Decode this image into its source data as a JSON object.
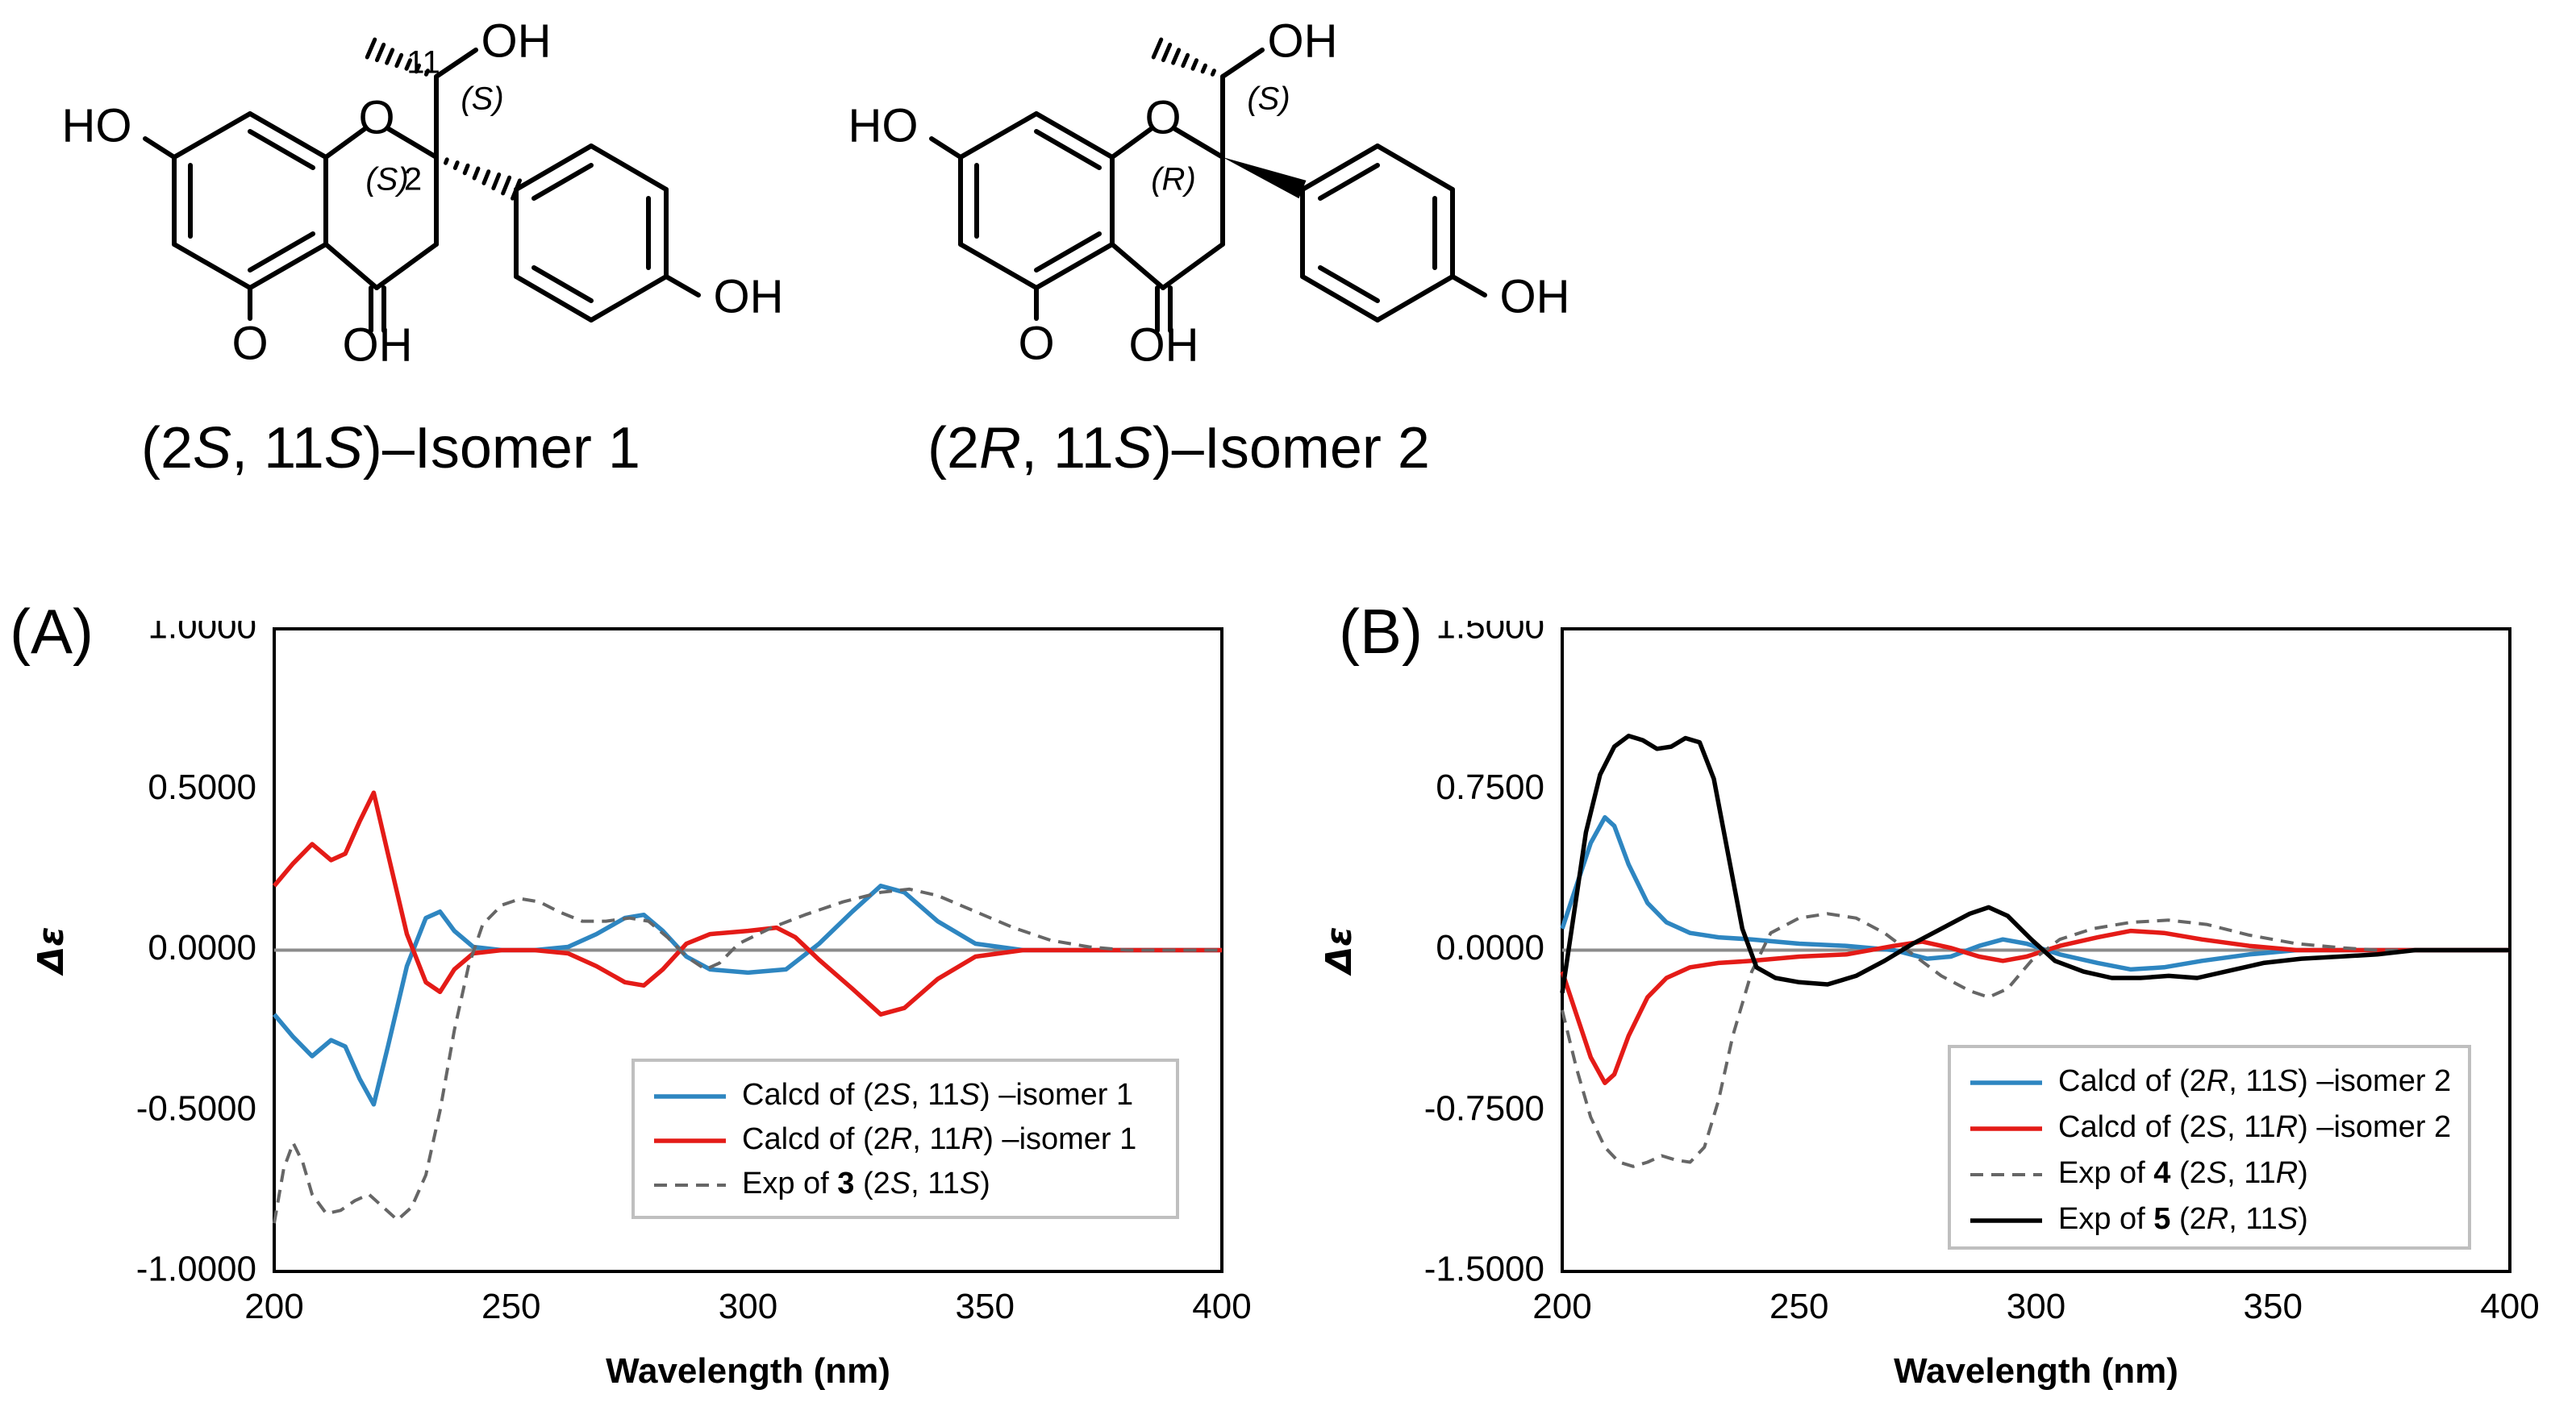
{
  "structures": [
    {
      "name": "(2S, 11S)–Isomer 1",
      "name_parts": [
        "(2",
        "S",
        ", 11",
        "S",
        ")–Isomer 1"
      ],
      "atom_labels": [
        "HO",
        "O",
        "OH",
        "OH",
        "O",
        "OH",
        "11",
        "2"
      ],
      "stereo_labels": [
        "(S)",
        "(S)"
      ]
    },
    {
      "name": "(2R, 11S)–Isomer 2",
      "name_parts": [
        "(2",
        "R",
        ", 11",
        "S",
        ")–Isomer 2"
      ],
      "atom_labels": [
        "HO",
        "O",
        "OH",
        "OH",
        "O",
        "OH"
      ],
      "stereo_labels": [
        "(S)",
        "(R)"
      ]
    }
  ],
  "chart_data": [
    {
      "panel": "(A)",
      "type": "line",
      "xlabel": "Wavelength (nm)",
      "ylabel": "Δε",
      "xlim": [
        200,
        400
      ],
      "ylim": [
        -1.0,
        1.0
      ],
      "x_ticks": [
        "200",
        "250",
        "300",
        "350",
        "400"
      ],
      "y_ticks": [
        "-1.0000",
        "-0.5000",
        "0.0000",
        "0.5000",
        "1.0000"
      ],
      "y_tick_values": [
        -1.0,
        -0.5,
        0,
        0.5,
        1.0
      ],
      "grid": false,
      "legend_position": "bottom-right",
      "series": [
        {
          "name_parts": [
            "Calcd of (2",
            "S",
            ", 11",
            "S",
            ") –isomer 1"
          ],
          "color": "#2E86C1",
          "style": "solid",
          "points": [
            [
              200,
              -0.2
            ],
            [
              204,
              -0.27
            ],
            [
              208,
              -0.33
            ],
            [
              212,
              -0.28
            ],
            [
              215,
              -0.3
            ],
            [
              218,
              -0.4
            ],
            [
              221,
              -0.48
            ],
            [
              224,
              -0.3
            ],
            [
              228,
              -0.05
            ],
            [
              232,
              0.1
            ],
            [
              235,
              0.12
            ],
            [
              238,
              0.06
            ],
            [
              242,
              0.01
            ],
            [
              248,
              0.0
            ],
            [
              255,
              0.0
            ],
            [
              262,
              0.01
            ],
            [
              268,
              0.05
            ],
            [
              274,
              0.1
            ],
            [
              278,
              0.11
            ],
            [
              282,
              0.06
            ],
            [
              287,
              -0.02
            ],
            [
              292,
              -0.06
            ],
            [
              300,
              -0.07
            ],
            [
              308,
              -0.06
            ],
            [
              315,
              0.02
            ],
            [
              322,
              0.12
            ],
            [
              328,
              0.2
            ],
            [
              333,
              0.18
            ],
            [
              340,
              0.09
            ],
            [
              348,
              0.02
            ],
            [
              358,
              0.0
            ],
            [
              400,
              0.0
            ]
          ]
        },
        {
          "name_parts": [
            "Calcd of (2",
            "R",
            ", 11",
            "R",
            ") –isomer 1"
          ],
          "color": "#E41B17",
          "style": "solid",
          "points": [
            [
              200,
              0.2
            ],
            [
              204,
              0.27
            ],
            [
              208,
              0.33
            ],
            [
              212,
              0.28
            ],
            [
              215,
              0.3
            ],
            [
              218,
              0.4
            ],
            [
              221,
              0.49
            ],
            [
              224,
              0.3
            ],
            [
              228,
              0.05
            ],
            [
              232,
              -0.1
            ],
            [
              235,
              -0.13
            ],
            [
              238,
              -0.06
            ],
            [
              242,
              -0.01
            ],
            [
              248,
              0.0
            ],
            [
              255,
              0.0
            ],
            [
              262,
              -0.01
            ],
            [
              268,
              -0.05
            ],
            [
              274,
              -0.1
            ],
            [
              278,
              -0.11
            ],
            [
              282,
              -0.06
            ],
            [
              287,
              0.02
            ],
            [
              292,
              0.05
            ],
            [
              300,
              0.06
            ],
            [
              306,
              0.07
            ],
            [
              310,
              0.04
            ],
            [
              315,
              -0.03
            ],
            [
              322,
              -0.12
            ],
            [
              328,
              -0.2
            ],
            [
              333,
              -0.18
            ],
            [
              340,
              -0.09
            ],
            [
              348,
              -0.02
            ],
            [
              358,
              0.0
            ],
            [
              400,
              0.0
            ]
          ]
        },
        {
          "name_parts": [
            "Exp of ",
            "3",
            " (2",
            "S",
            ", 11",
            "S",
            ")"
          ],
          "color": "#666666",
          "style": "dashed",
          "points": [
            [
              200,
              -0.85
            ],
            [
              202,
              -0.68
            ],
            [
              204,
              -0.6
            ],
            [
              206,
              -0.66
            ],
            [
              208,
              -0.76
            ],
            [
              211,
              -0.82
            ],
            [
              214,
              -0.81
            ],
            [
              217,
              -0.78
            ],
            [
              220,
              -0.76
            ],
            [
              223,
              -0.8
            ],
            [
              226,
              -0.84
            ],
            [
              229,
              -0.8
            ],
            [
              232,
              -0.7
            ],
            [
              235,
              -0.5
            ],
            [
              238,
              -0.25
            ],
            [
              241,
              -0.05
            ],
            [
              244,
              0.08
            ],
            [
              248,
              0.14
            ],
            [
              252,
              0.16
            ],
            [
              256,
              0.15
            ],
            [
              260,
              0.12
            ],
            [
              265,
              0.09
            ],
            [
              270,
              0.09
            ],
            [
              275,
              0.1
            ],
            [
              279,
              0.09
            ],
            [
              283,
              0.04
            ],
            [
              287,
              -0.02
            ],
            [
              291,
              -0.06
            ],
            [
              294,
              -0.04
            ],
            [
              298,
              0.02
            ],
            [
              305,
              0.07
            ],
            [
              312,
              0.11
            ],
            [
              320,
              0.15
            ],
            [
              328,
              0.18
            ],
            [
              334,
              0.19
            ],
            [
              340,
              0.17
            ],
            [
              348,
              0.12
            ],
            [
              356,
              0.07
            ],
            [
              364,
              0.03
            ],
            [
              372,
              0.01
            ],
            [
              380,
              0.0
            ],
            [
              400,
              0.0
            ]
          ]
        }
      ]
    },
    {
      "panel": "(B)",
      "type": "line",
      "xlabel": "Wavelength (nm)",
      "ylabel": "Δε",
      "xlim": [
        200,
        400
      ],
      "ylim": [
        -1.5,
        1.5
      ],
      "x_ticks": [
        "200",
        "250",
        "300",
        "350",
        "400"
      ],
      "y_ticks": [
        "-1.5000",
        "-0.7500",
        "0.0000",
        "0.7500",
        "1.5000"
      ],
      "y_tick_values": [
        -1.5,
        -0.75,
        0,
        0.75,
        1.5
      ],
      "grid": false,
      "legend_position": "bottom-right",
      "series": [
        {
          "name_parts": [
            "Calcd of (2",
            "R",
            ", 11",
            "S",
            ") –isomer 2"
          ],
          "color": "#2E86C1",
          "style": "solid",
          "points": [
            [
              200,
              0.1
            ],
            [
              203,
              0.3
            ],
            [
              206,
              0.5
            ],
            [
              209,
              0.62
            ],
            [
              211,
              0.58
            ],
            [
              214,
              0.4
            ],
            [
              218,
              0.22
            ],
            [
              222,
              0.13
            ],
            [
              227,
              0.08
            ],
            [
              233,
              0.06
            ],
            [
              240,
              0.05
            ],
            [
              250,
              0.03
            ],
            [
              260,
              0.02
            ],
            [
              270,
              0.0
            ],
            [
              277,
              -0.04
            ],
            [
              282,
              -0.03
            ],
            [
              288,
              0.02
            ],
            [
              293,
              0.05
            ],
            [
              298,
              0.03
            ],
            [
              305,
              -0.02
            ],
            [
              313,
              -0.06
            ],
            [
              320,
              -0.09
            ],
            [
              327,
              -0.08
            ],
            [
              335,
              -0.05
            ],
            [
              345,
              -0.02
            ],
            [
              355,
              0.0
            ],
            [
              400,
              0.0
            ]
          ]
        },
        {
          "name_parts": [
            "Calcd of (2",
            "S",
            ", 11",
            "R",
            ") –isomer 2"
          ],
          "color": "#E41B17",
          "style": "solid",
          "points": [
            [
              200,
              -0.1
            ],
            [
              203,
              -0.3
            ],
            [
              206,
              -0.5
            ],
            [
              209,
              -0.62
            ],
            [
              211,
              -0.58
            ],
            [
              214,
              -0.4
            ],
            [
              218,
              -0.22
            ],
            [
              222,
              -0.13
            ],
            [
              227,
              -0.08
            ],
            [
              233,
              -0.06
            ],
            [
              240,
              -0.05
            ],
            [
              250,
              -0.03
            ],
            [
              260,
              -0.02
            ],
            [
              270,
              0.02
            ],
            [
              276,
              0.04
            ],
            [
              282,
              0.01
            ],
            [
              288,
              -0.03
            ],
            [
              293,
              -0.05
            ],
            [
              298,
              -0.03
            ],
            [
              305,
              0.02
            ],
            [
              313,
              0.06
            ],
            [
              320,
              0.09
            ],
            [
              327,
              0.08
            ],
            [
              335,
              0.05
            ],
            [
              345,
              0.02
            ],
            [
              355,
              0.0
            ],
            [
              400,
              0.0
            ]
          ]
        },
        {
          "name_parts": [
            "Exp of ",
            "4",
            " (2",
            "S",
            ", 11",
            "R",
            ")"
          ],
          "color": "#666666",
          "style": "dashed",
          "points": [
            [
              200,
              -0.28
            ],
            [
              203,
              -0.55
            ],
            [
              206,
              -0.78
            ],
            [
              209,
              -0.92
            ],
            [
              212,
              -0.99
            ],
            [
              215,
              -1.01
            ],
            [
              218,
              -0.99
            ],
            [
              221,
              -0.96
            ],
            [
              224,
              -0.98
            ],
            [
              227,
              -0.99
            ],
            [
              230,
              -0.92
            ],
            [
              233,
              -0.7
            ],
            [
              236,
              -0.4
            ],
            [
              240,
              -0.1
            ],
            [
              244,
              0.08
            ],
            [
              250,
              0.15
            ],
            [
              256,
              0.17
            ],
            [
              262,
              0.15
            ],
            [
              268,
              0.08
            ],
            [
              274,
              -0.02
            ],
            [
              280,
              -0.12
            ],
            [
              286,
              -0.19
            ],
            [
              290,
              -0.22
            ],
            [
              294,
              -0.18
            ],
            [
              299,
              -0.05
            ],
            [
              305,
              0.05
            ],
            [
              312,
              0.1
            ],
            [
              320,
              0.13
            ],
            [
              328,
              0.14
            ],
            [
              336,
              0.12
            ],
            [
              345,
              0.07
            ],
            [
              355,
              0.03
            ],
            [
              365,
              0.01
            ],
            [
              372,
              0.0
            ],
            [
              400,
              0.0
            ]
          ]
        },
        {
          "name_parts": [
            "Exp of ",
            "5",
            " (2",
            "R",
            ", 11",
            "S",
            ")"
          ],
          "color": "#000000",
          "style": "solid",
          "points": [
            [
              200,
              -0.2
            ],
            [
              202,
              0.1
            ],
            [
              205,
              0.55
            ],
            [
              208,
              0.82
            ],
            [
              211,
              0.95
            ],
            [
              214,
              1.0
            ],
            [
              217,
              0.98
            ],
            [
              220,
              0.94
            ],
            [
              223,
              0.95
            ],
            [
              226,
              0.99
            ],
            [
              229,
              0.97
            ],
            [
              232,
              0.8
            ],
            [
              235,
              0.45
            ],
            [
              238,
              0.1
            ],
            [
              241,
              -0.08
            ],
            [
              245,
              -0.13
            ],
            [
              250,
              -0.15
            ],
            [
              256,
              -0.16
            ],
            [
              262,
              -0.12
            ],
            [
              268,
              -0.05
            ],
            [
              274,
              0.03
            ],
            [
              280,
              0.1
            ],
            [
              286,
              0.17
            ],
            [
              290,
              0.2
            ],
            [
              294,
              0.16
            ],
            [
              299,
              0.05
            ],
            [
              304,
              -0.05
            ],
            [
              310,
              -0.1
            ],
            [
              316,
              -0.13
            ],
            [
              322,
              -0.13
            ],
            [
              328,
              -0.12
            ],
            [
              334,
              -0.13
            ],
            [
              340,
              -0.1
            ],
            [
              348,
              -0.06
            ],
            [
              356,
              -0.04
            ],
            [
              364,
              -0.03
            ],
            [
              372,
              -0.02
            ],
            [
              380,
              0.0
            ],
            [
              400,
              0.0
            ]
          ]
        }
      ]
    }
  ]
}
